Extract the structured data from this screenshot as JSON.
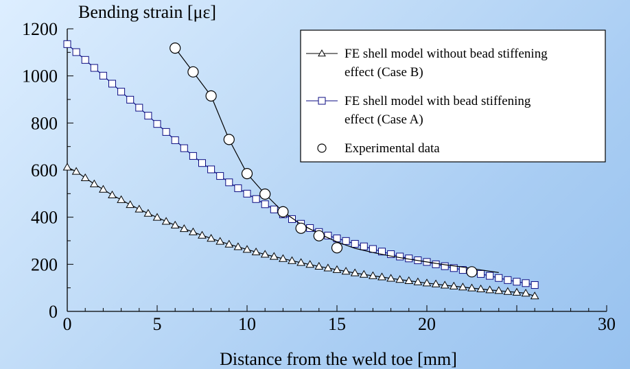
{
  "chart_data": {
    "type": "line",
    "title": "",
    "ylabel": "Bending strain [με]",
    "xlabel": "Distance from the weld toe [mm]",
    "xlim": [
      0,
      30
    ],
    "ylim": [
      0,
      1200
    ],
    "xticks": [
      0,
      5,
      10,
      15,
      20,
      30
    ],
    "yticks": [
      0,
      200,
      400,
      600,
      800,
      1000,
      1200
    ],
    "legend_position": "top-right",
    "grid": false,
    "series": [
      {
        "name": "FE shell model without bead stiffening effect (Case B)",
        "legend_lines": [
          "FE shell model without bead stiffening",
          "effect (Case B)"
        ],
        "marker": "triangle",
        "color": "#000000",
        "x": [
          0,
          0.5,
          1,
          1.5,
          2,
          2.5,
          3,
          3.5,
          4,
          4.5,
          5,
          5.5,
          6,
          6.5,
          7,
          7.5,
          8,
          8.5,
          9,
          9.5,
          10,
          10.5,
          11,
          11.5,
          12,
          12.5,
          13,
          13.5,
          14,
          14.5,
          15,
          15.5,
          16,
          16.5,
          17,
          17.5,
          18,
          18.5,
          19,
          19.5,
          20,
          20.5,
          21,
          21.5,
          22,
          22.5,
          23,
          23.5,
          24,
          24.5,
          25,
          25.5,
          26
        ],
        "y": [
          612,
          594,
          567,
          541,
          518,
          494,
          474,
          453,
          434,
          416,
          399,
          382,
          366,
          351,
          337,
          323,
          310,
          297,
          285,
          274,
          263,
          252,
          242,
          233,
          224,
          215,
          207,
          199,
          191,
          184,
          177,
          170,
          163,
          157,
          151,
          146,
          140,
          135,
          130,
          125,
          120,
          116,
          111,
          107,
          103,
          99,
          95,
          91,
          88,
          84,
          81,
          77,
          65
        ]
      },
      {
        "name": "FE shell model with bead stiffening effect (Case A)",
        "legend_lines": [
          "FE shell model with bead stiffening",
          "effect (Case A)"
        ],
        "marker": "square",
        "color": "#0a0a80",
        "x": [
          0,
          0.5,
          1,
          1.5,
          2,
          2.5,
          3,
          3.5,
          4,
          4.5,
          5,
          5.5,
          6,
          6.5,
          7,
          7.5,
          8,
          8.5,
          9,
          9.5,
          10,
          10.5,
          11,
          11.5,
          12,
          12.5,
          13,
          13.5,
          14,
          14.5,
          15,
          15.5,
          16,
          16.5,
          17,
          17.5,
          18,
          18.5,
          19,
          19.5,
          20,
          20.5,
          21,
          21.5,
          22,
          22.5,
          23,
          23.5,
          24,
          24.5,
          25,
          25.5,
          26
        ],
        "y": [
          1135,
          1101,
          1068,
          1034,
          1001,
          967,
          933,
          899,
          865,
          831,
          796,
          762,
          727,
          693,
          660,
          630,
          603,
          575,
          548,
          523,
          500,
          477,
          455,
          433,
          412,
          392,
          372,
          354,
          337,
          322,
          310,
          299,
          287,
          276,
          265,
          254,
          243,
          233,
          225,
          217,
          210,
          200,
          192,
          184,
          176,
          168,
          159,
          151,
          142,
          133,
          126,
          120,
          112
        ]
      },
      {
        "name": "Experimental data",
        "legend_lines": [
          "Experimental data"
        ],
        "marker": "circle",
        "color": "#000000",
        "x": [
          6,
          7,
          8,
          9,
          10,
          11,
          12,
          13,
          14,
          15,
          22.5
        ],
        "y": [
          1118,
          1017,
          915,
          730,
          585,
          498,
          423,
          353,
          321,
          270,
          168
        ],
        "fit_curve": {
          "x": [
            6,
            7,
            8,
            9,
            10,
            11,
            12,
            13,
            14,
            15,
            16,
            17,
            18,
            19,
            20,
            21,
            22,
            23,
            24
          ],
          "y": [
            1118,
            1017,
            915,
            730,
            585,
            498,
            423,
            370,
            330,
            295,
            268,
            250,
            235,
            222,
            210,
            198,
            188,
            176,
            165
          ]
        }
      }
    ]
  }
}
